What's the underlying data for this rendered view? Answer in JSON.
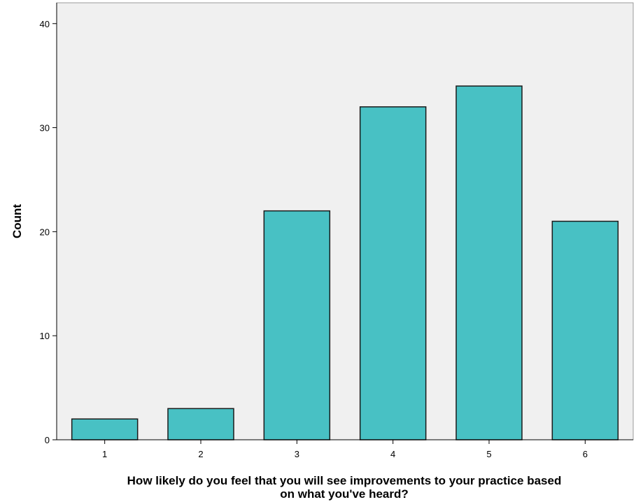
{
  "chart_data": {
    "type": "bar",
    "categories": [
      "1",
      "2",
      "3",
      "4",
      "5",
      "6"
    ],
    "values": [
      2,
      3,
      22,
      32,
      34,
      21
    ],
    "title": "",
    "xlabel_lines": [
      "How likely do you feel that you will see improvements to your practice based",
      "on what you've heard?"
    ],
    "ylabel": "Count",
    "ylim": [
      0,
      42
    ],
    "yticks": [
      0,
      10,
      20,
      30,
      40
    ],
    "grid": false,
    "colors": {
      "bar_fill": "#48c1c4",
      "bar_stroke": "#1a1a1a",
      "plot_background": "#f0f0f0",
      "axis": "#000000"
    }
  }
}
